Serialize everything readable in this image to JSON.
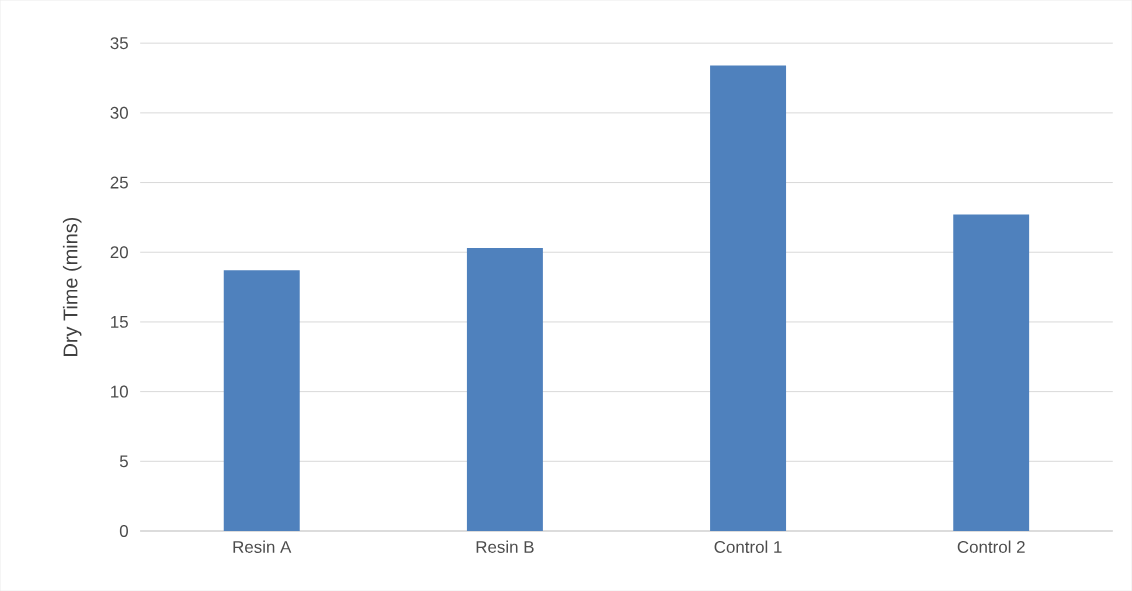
{
  "chart_data": {
    "type": "bar",
    "ylabel": "Dry Time (mins)",
    "categories": [
      "Resin A",
      "Resin B",
      "Control 1",
      "Control 2"
    ],
    "values": [
      18.7,
      20.3,
      33.4,
      22.7
    ],
    "color": "#4f81bd",
    "ylim": [
      0,
      35
    ],
    "yticks": [
      0,
      5,
      10,
      15,
      20,
      25,
      30,
      35
    ],
    "grid": "y"
  }
}
